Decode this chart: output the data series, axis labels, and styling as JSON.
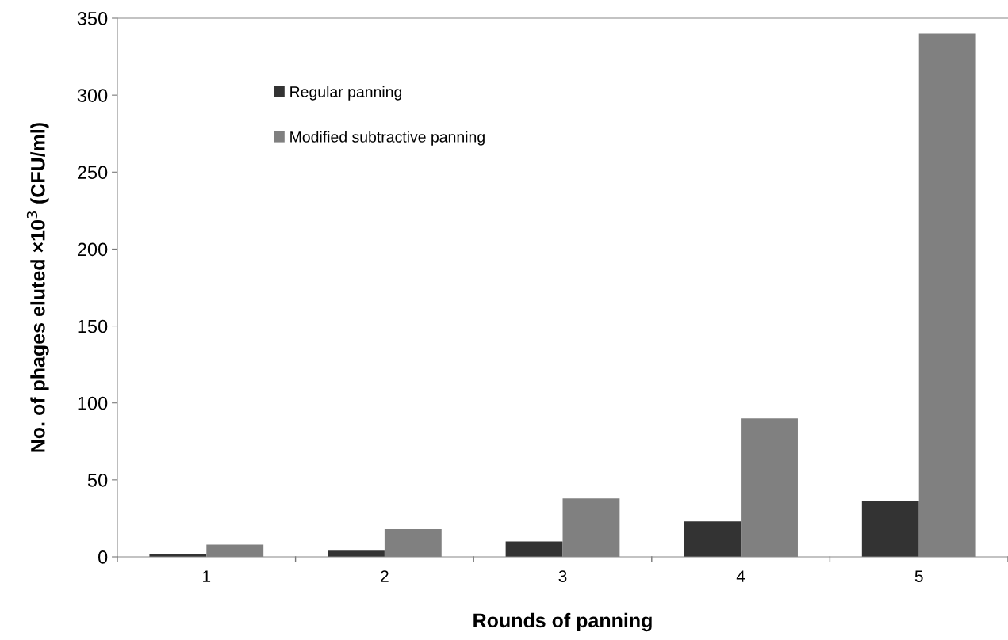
{
  "chart_data": {
    "type": "bar",
    "xlabel": "Rounds of panning",
    "ylabel": "No. of phages eluted ×10$^{3}$ (CFU/ml)",
    "categories": [
      "1",
      "2",
      "3",
      "4",
      "5"
    ],
    "series": [
      {
        "name": "Regular panning",
        "color": "#333333",
        "values": [
          1.5,
          4,
          10,
          23,
          36
        ]
      },
      {
        "name": "Modified subtractive panning",
        "color": "#808080",
        "values": [
          8,
          18,
          38,
          90,
          340
        ]
      }
    ],
    "ylim": [
      0,
      350
    ],
    "yticks": [
      0,
      50,
      100,
      150,
      200,
      250,
      300,
      350
    ],
    "grid": false,
    "legend": "top left"
  }
}
